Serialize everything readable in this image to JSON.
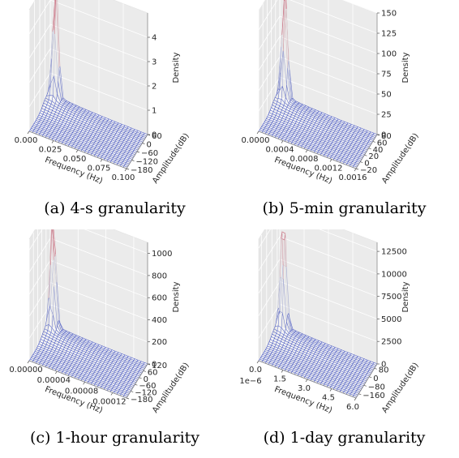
{
  "chart_data": [
    {
      "type": "surface3d",
      "caption": "(a) 4-s granularity",
      "xlabel": "Frequency (Hz)",
      "ylabel": "Amplitude(dB)",
      "zlabel": "Density",
      "xticks": [
        "0.000",
        "0.025",
        "0.050",
        "0.075",
        "0.100"
      ],
      "yticks": [
        "−180",
        "−120",
        "−60",
        "0",
        "60"
      ],
      "zticks": [
        "0",
        "1",
        "2",
        "3",
        "4"
      ],
      "xlim": [
        0,
        0.1
      ],
      "ylim": [
        -180,
        60
      ],
      "zlim": [
        0,
        5
      ],
      "peak": {
        "x": 0.006,
        "y": 55,
        "z": 5
      },
      "colormap": [
        "#3b4cc0",
        "#dddddd",
        "#b40426"
      ]
    },
    {
      "type": "surface3d",
      "caption": "(b) 5-min granularity",
      "xlabel": "Frequency (Hz)",
      "ylabel": "Amplitude(dB)",
      "zlabel": "Density",
      "xticks": [
        "0.0000",
        "0.0004",
        "0.0008",
        "0.0012",
        "0.0016"
      ],
      "yticks": [
        "−20",
        "0",
        "20",
        "40",
        "60",
        "80"
      ],
      "zticks": [
        "0",
        "25",
        "50",
        "75",
        "100",
        "125",
        "150"
      ],
      "xlim": [
        0,
        0.0016
      ],
      "ylim": [
        -20,
        80
      ],
      "zlim": [
        0,
        150
      ],
      "peak": {
        "x": 0.0001,
        "y": 75,
        "z": 150
      },
      "colormap": [
        "#3b4cc0",
        "#dddddd",
        "#b40426"
      ]
    },
    {
      "type": "surface3d",
      "caption": "(c) 1-hour granularity",
      "xlabel": "Frequency (Hz)",
      "ylabel": "Amplitude(dB)",
      "zlabel": "Density",
      "xticks": [
        "0.00000",
        "0.00004",
        "0.00008",
        "0.00012"
      ],
      "yticks": [
        "−180",
        "−120",
        "−60",
        "0",
        "60",
        "120"
      ],
      "zticks": [
        "0",
        "200",
        "400",
        "600",
        "800",
        "1000"
      ],
      "xlim": [
        0,
        0.00014
      ],
      "ylim": [
        -180,
        120
      ],
      "zlim": [
        0,
        1100
      ],
      "peak": {
        "x": 6e-06,
        "y": 100,
        "z": 1100
      },
      "colormap": [
        "#3b4cc0",
        "#dddddd",
        "#b40426"
      ]
    },
    {
      "type": "surface3d",
      "caption": "(d) 1-day granularity",
      "xlabel": "Frequency (Hz)",
      "ylabel": "Amplitude(dB)",
      "zlabel": "Density",
      "xticks": [
        "0.0",
        "1.5",
        "3.0",
        "4.5",
        "6.0"
      ],
      "xoffset": "1e−6",
      "yticks": [
        "−160",
        "−80",
        "0",
        "80"
      ],
      "zticks": [
        "0",
        "2500",
        "5000",
        "7500",
        "10000",
        "12500"
      ],
      "xlim": [
        0,
        6
      ],
      "ylim": [
        -200,
        120
      ],
      "zlim": [
        0,
        13500
      ],
      "peak": {
        "x": 0.3,
        "y": 100,
        "z": 13500
      },
      "colormap": [
        "#3b4cc0",
        "#dddddd",
        "#b40426"
      ]
    }
  ]
}
